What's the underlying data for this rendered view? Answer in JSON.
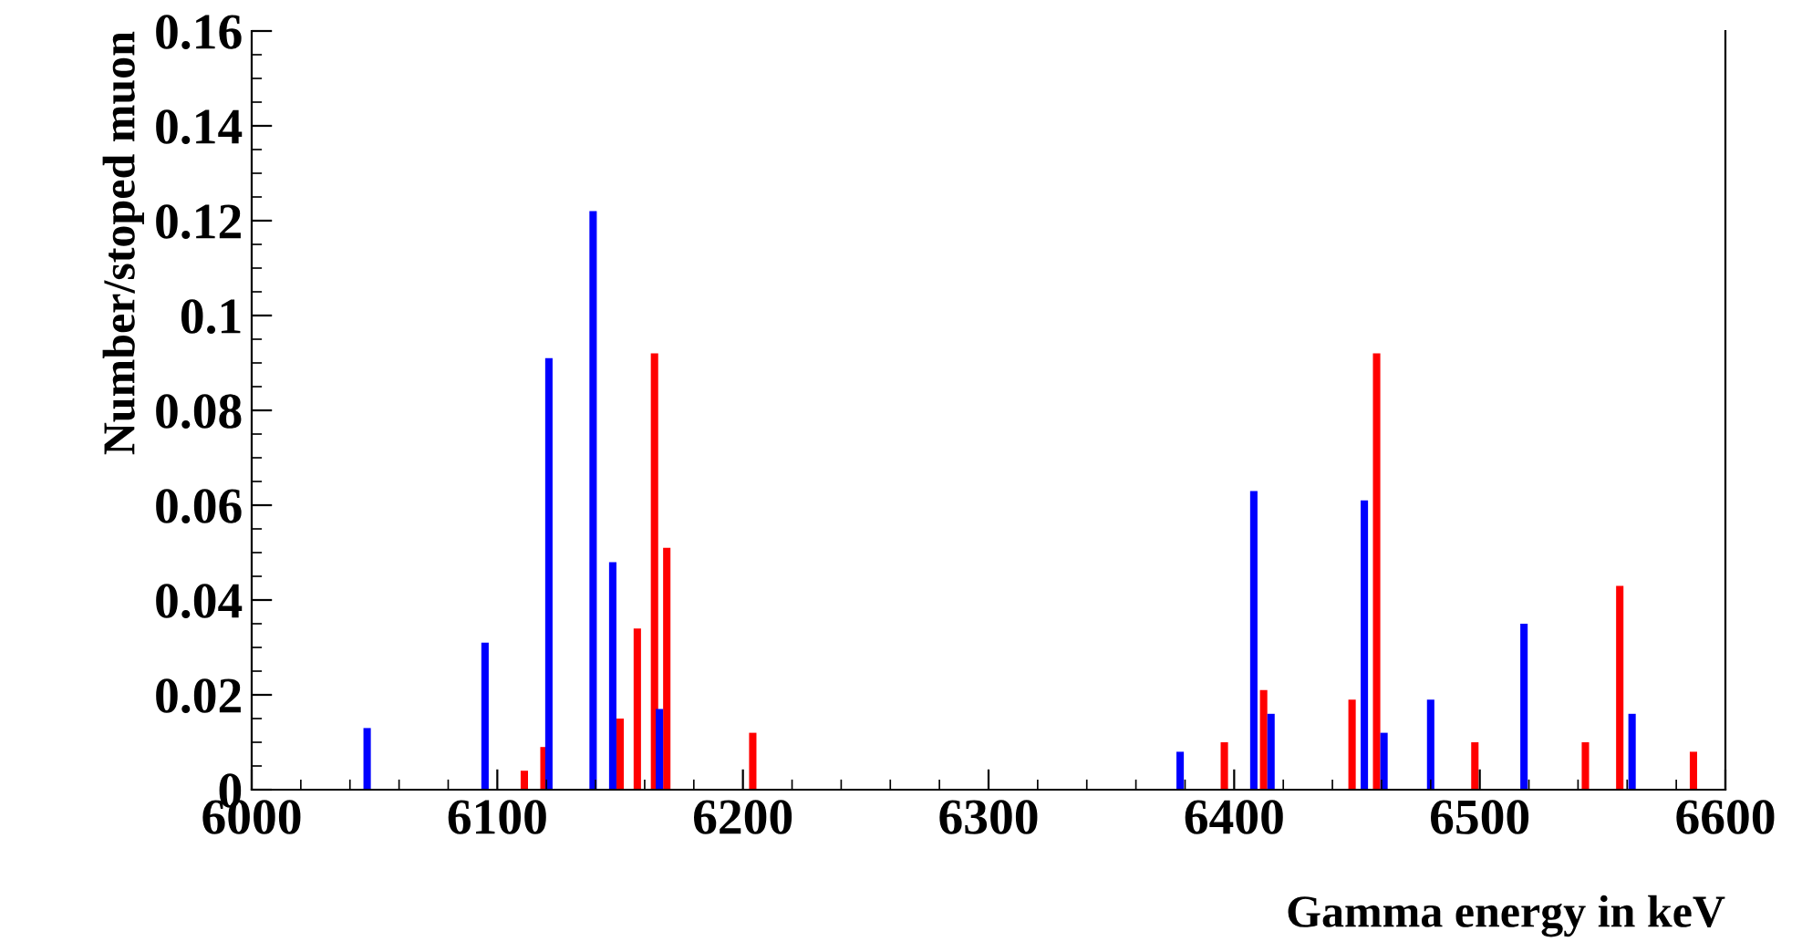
{
  "chart_data": {
    "type": "bar",
    "xlabel": "Gamma energy in keV",
    "ylabel": "Number/stoped muon",
    "xlim": [
      6000,
      6600
    ],
    "xticks": [
      6000,
      6100,
      6200,
      6300,
      6400,
      6500,
      6600
    ],
    "ylim": [
      0,
      0.16
    ],
    "yticks": [
      0,
      0.02,
      0.04,
      0.06,
      0.08,
      0.1,
      0.12,
      0.14,
      0.16
    ],
    "grid": false,
    "legend": false,
    "series": [
      {
        "color": "#ff0000",
        "x": [
          6111,
          6119,
          6150,
          6157,
          6164,
          6169,
          6204,
          6396,
          6412,
          6448,
          6458,
          6498,
          6543,
          6557,
          6587
        ],
        "values": [
          0.004,
          0.009,
          0.015,
          0.034,
          0.092,
          0.051,
          0.012,
          0.01,
          0.021,
          0.019,
          0.092,
          0.01,
          0.01,
          0.043,
          0.008
        ]
      },
      {
        "color": "#0000ff",
        "x": [
          6047,
          6095,
          6121,
          6139,
          6147,
          6166,
          6378,
          6408,
          6415,
          6453,
          6461,
          6480,
          6518,
          6562
        ],
        "values": [
          0.013,
          0.031,
          0.091,
          0.122,
          0.048,
          0.017,
          0.008,
          0.063,
          0.016,
          0.061,
          0.012,
          0.019,
          0.035,
          0.016
        ]
      }
    ]
  }
}
